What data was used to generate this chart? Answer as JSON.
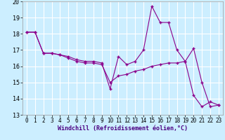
{
  "title": "",
  "xlabel": "Windchill (Refroidissement éolien,°C)",
  "x_values": [
    0,
    1,
    2,
    3,
    4,
    5,
    6,
    7,
    8,
    9,
    10,
    11,
    12,
    13,
    14,
    15,
    16,
    17,
    18,
    19,
    20,
    21,
    22,
    23
  ],
  "line1": [
    18.1,
    18.1,
    16.8,
    16.8,
    16.7,
    16.6,
    16.4,
    16.3,
    16.3,
    16.2,
    14.6,
    16.6,
    16.1,
    16.3,
    17.0,
    19.7,
    18.7,
    18.7,
    17.0,
    16.3,
    17.1,
    15.0,
    13.5,
    13.6
  ],
  "line2": [
    18.1,
    18.1,
    16.8,
    16.8,
    16.7,
    16.5,
    16.3,
    16.2,
    16.2,
    16.1,
    15.0,
    15.4,
    15.5,
    15.7,
    15.8,
    16.0,
    16.1,
    16.2,
    16.2,
    16.3,
    14.2,
    13.5,
    13.8,
    13.6
  ],
  "line_color": "#8B008B",
  "bg_color": "#cceeff",
  "grid_color": "#ffffff",
  "ylim": [
    13,
    20
  ],
  "xlim": [
    -0.5,
    23.5
  ],
  "yticks": [
    13,
    14,
    15,
    16,
    17,
    18,
    19,
    20
  ],
  "xticks": [
    0,
    1,
    2,
    3,
    4,
    5,
    6,
    7,
    8,
    9,
    10,
    11,
    12,
    13,
    14,
    15,
    16,
    17,
    18,
    19,
    20,
    21,
    22,
    23
  ],
  "marker": "+",
  "markersize": 3.5,
  "linewidth": 0.8,
  "tick_fontsize": 5.5,
  "xlabel_fontsize": 6.0
}
